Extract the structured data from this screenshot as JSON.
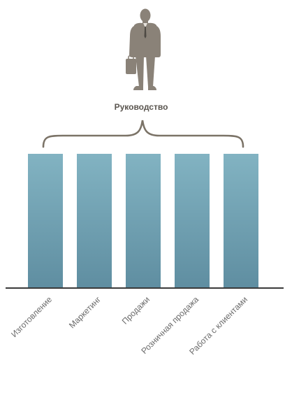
{
  "header": {
    "title": "Руководство",
    "icon": "businessman-with-briefcase-icon"
  },
  "departments": [
    {
      "label": "Изготовление"
    },
    {
      "label": "Маркетинг"
    },
    {
      "label": "Продажи"
    },
    {
      "label": "Розничная продажа"
    },
    {
      "label": "Работа с клиентами"
    }
  ],
  "colors": {
    "pillar_top": "#82b3c2",
    "pillar_bottom": "#5f8ea1",
    "figure": "#8a8278",
    "brace": "#7b7367",
    "baseline": "#3a3a3a",
    "title_text": "#5a554f",
    "label_text": "#6b6b6b"
  }
}
